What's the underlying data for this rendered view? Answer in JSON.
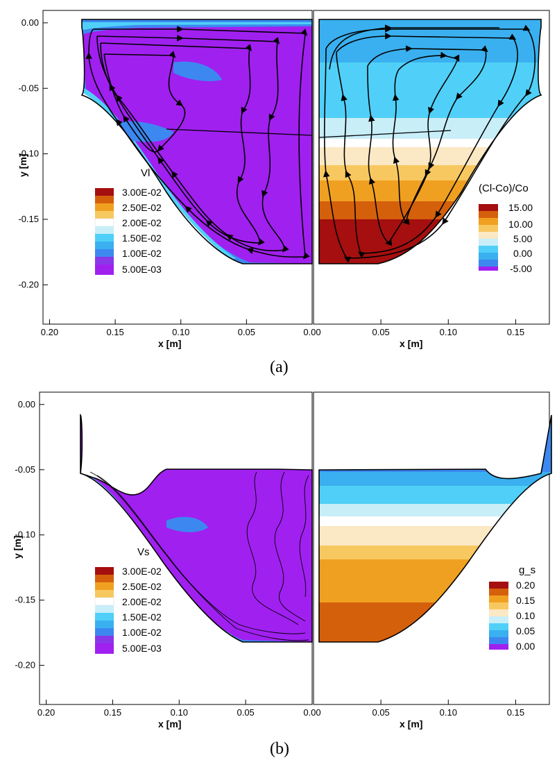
{
  "panels": [
    {
      "caption": "(a)",
      "left_legend": {
        "title": "Vl",
        "entries": [
          "3.00E-02",
          "2.50E-02",
          "2.00E-02",
          "1.50E-02",
          "1.00E-02",
          "5.00E-03"
        ]
      },
      "right_legend": {
        "title": "(Cl-Co)/Co",
        "entries": [
          "15.00",
          "10.00",
          "5.00",
          "0.00",
          "-5.00"
        ]
      }
    },
    {
      "caption": "(b)",
      "left_legend": {
        "title": "Vs",
        "entries": [
          "3.00E-02",
          "2.50E-02",
          "2.00E-02",
          "1.50E-02",
          "1.00E-02",
          "5.00E-03"
        ]
      },
      "right_legend": {
        "title": "g_s",
        "entries": [
          "0.20",
          "0.15",
          "0.10",
          "0.05",
          "0.00"
        ]
      }
    }
  ],
  "chart_data": [
    {
      "type": "heatmap",
      "panel": "(a)",
      "xlabel_left": "x [m]",
      "xlabel_right": "x [m]",
      "ylabel": "y [m]",
      "x_ticks_left": [
        "0.20",
        "0.15",
        "0.10",
        "0.05",
        "0.00"
      ],
      "x_ticks_right": [
        "0.00",
        "0.05",
        "0.10",
        "0.15"
      ],
      "y_ticks": [
        "0.00",
        "-0.05",
        "-0.10",
        "-0.15",
        "-0.20"
      ],
      "ylim": [
        -0.23,
        0.01
      ],
      "xlim_left": [
        0.205,
        0.0
      ],
      "xlim_right": [
        0.0,
        0.175
      ],
      "left_field": "Vl",
      "left_levels": [
        0.03,
        0.025,
        0.02,
        0.015,
        0.01,
        0.005
      ],
      "right_field": "(Cl-Co)/Co",
      "right_levels": [
        15.0,
        10.0,
        5.0,
        0.0,
        -5.0
      ],
      "streamlines": true
    },
    {
      "type": "heatmap",
      "panel": "(b)",
      "xlabel_left": "x [m]",
      "xlabel_right": "x [m]",
      "ylabel": "y [m]",
      "x_ticks_left": [
        "0.20",
        "0.15",
        "0.10",
        "0.05",
        "0.00"
      ],
      "x_ticks_right": [
        "0.00",
        "0.05",
        "0.10",
        "0.15"
      ],
      "y_ticks": [
        "0.00",
        "-0.05",
        "-0.10",
        "-0.15",
        "-0.20"
      ],
      "ylim": [
        -0.23,
        0.01
      ],
      "xlim_left": [
        0.205,
        0.0
      ],
      "xlim_right": [
        0.0,
        0.175
      ],
      "left_field": "Vs",
      "left_levels": [
        0.03,
        0.025,
        0.02,
        0.015,
        0.01,
        0.005
      ],
      "right_field": "g_s",
      "right_levels": [
        0.2,
        0.15,
        0.1,
        0.05,
        0.0
      ],
      "streamlines": true
    }
  ],
  "colors": {
    "dark_red": "#a50f0f",
    "red_orange": "#d4600c",
    "orange": "#f0a020",
    "light_orange": "#f8c860",
    "cream": "#fbe8c4",
    "white": "#ffffff",
    "pale_cyan": "#c8eef8",
    "cyan": "#50d0f8",
    "sky": "#3ab0f0",
    "blue": "#3c88f0",
    "purple": "#a020f0",
    "violet": "#8838e8"
  }
}
